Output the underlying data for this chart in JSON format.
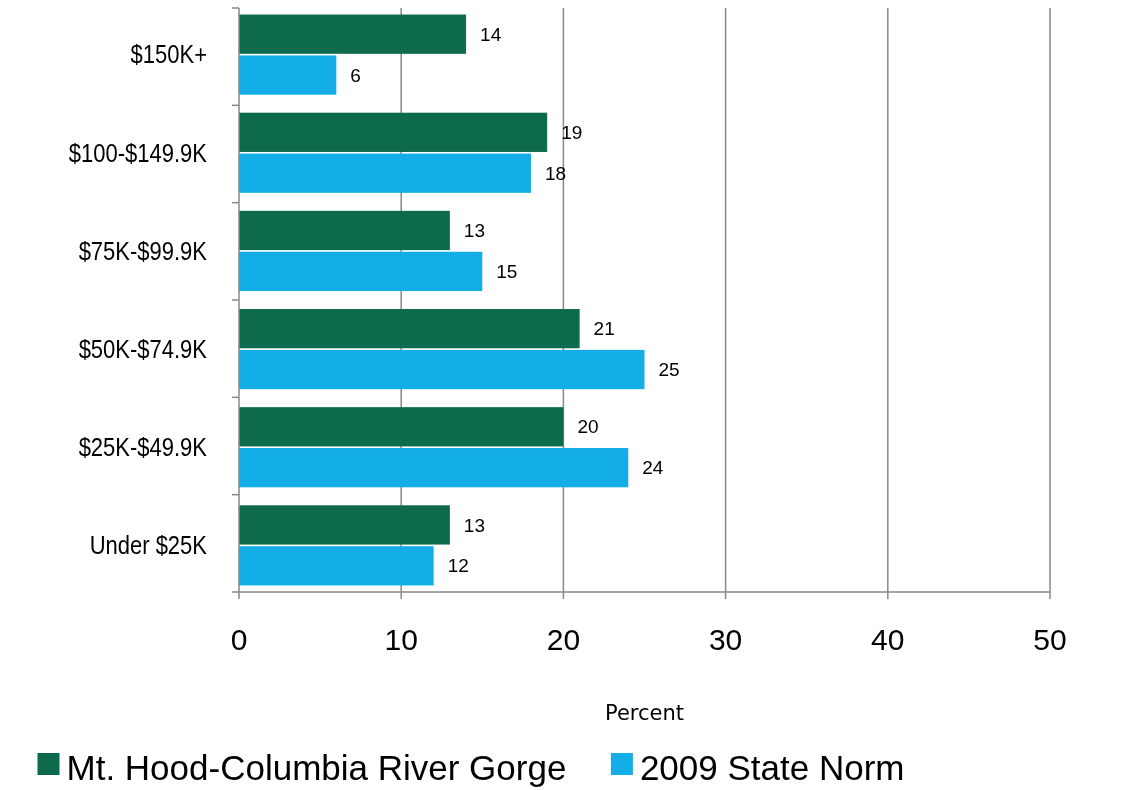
{
  "chart_data": {
    "type": "bar",
    "orientation": "horizontal",
    "xlabel": "Percent",
    "categories": [
      "$150K+",
      "$100-$149.9K",
      "$75K-$99.9K",
      "$50K-$74.9K",
      "$25K-$49.9K",
      "Under $25K"
    ],
    "series": [
      {
        "name": "Mt. Hood-Columbia River Gorge",
        "color": "#0e6a4c",
        "values": [
          14,
          19,
          13,
          21,
          20,
          13
        ]
      },
      {
        "name": "2009 State Norm",
        "color": "#13aee8",
        "values": [
          6,
          18,
          15,
          25,
          24,
          12
        ]
      }
    ],
    "xlim": [
      0,
      50
    ],
    "xticks": [
      0,
      10,
      20,
      30,
      40,
      50
    ],
    "grid": "x",
    "legend": "bottom",
    "data_labels": true
  }
}
